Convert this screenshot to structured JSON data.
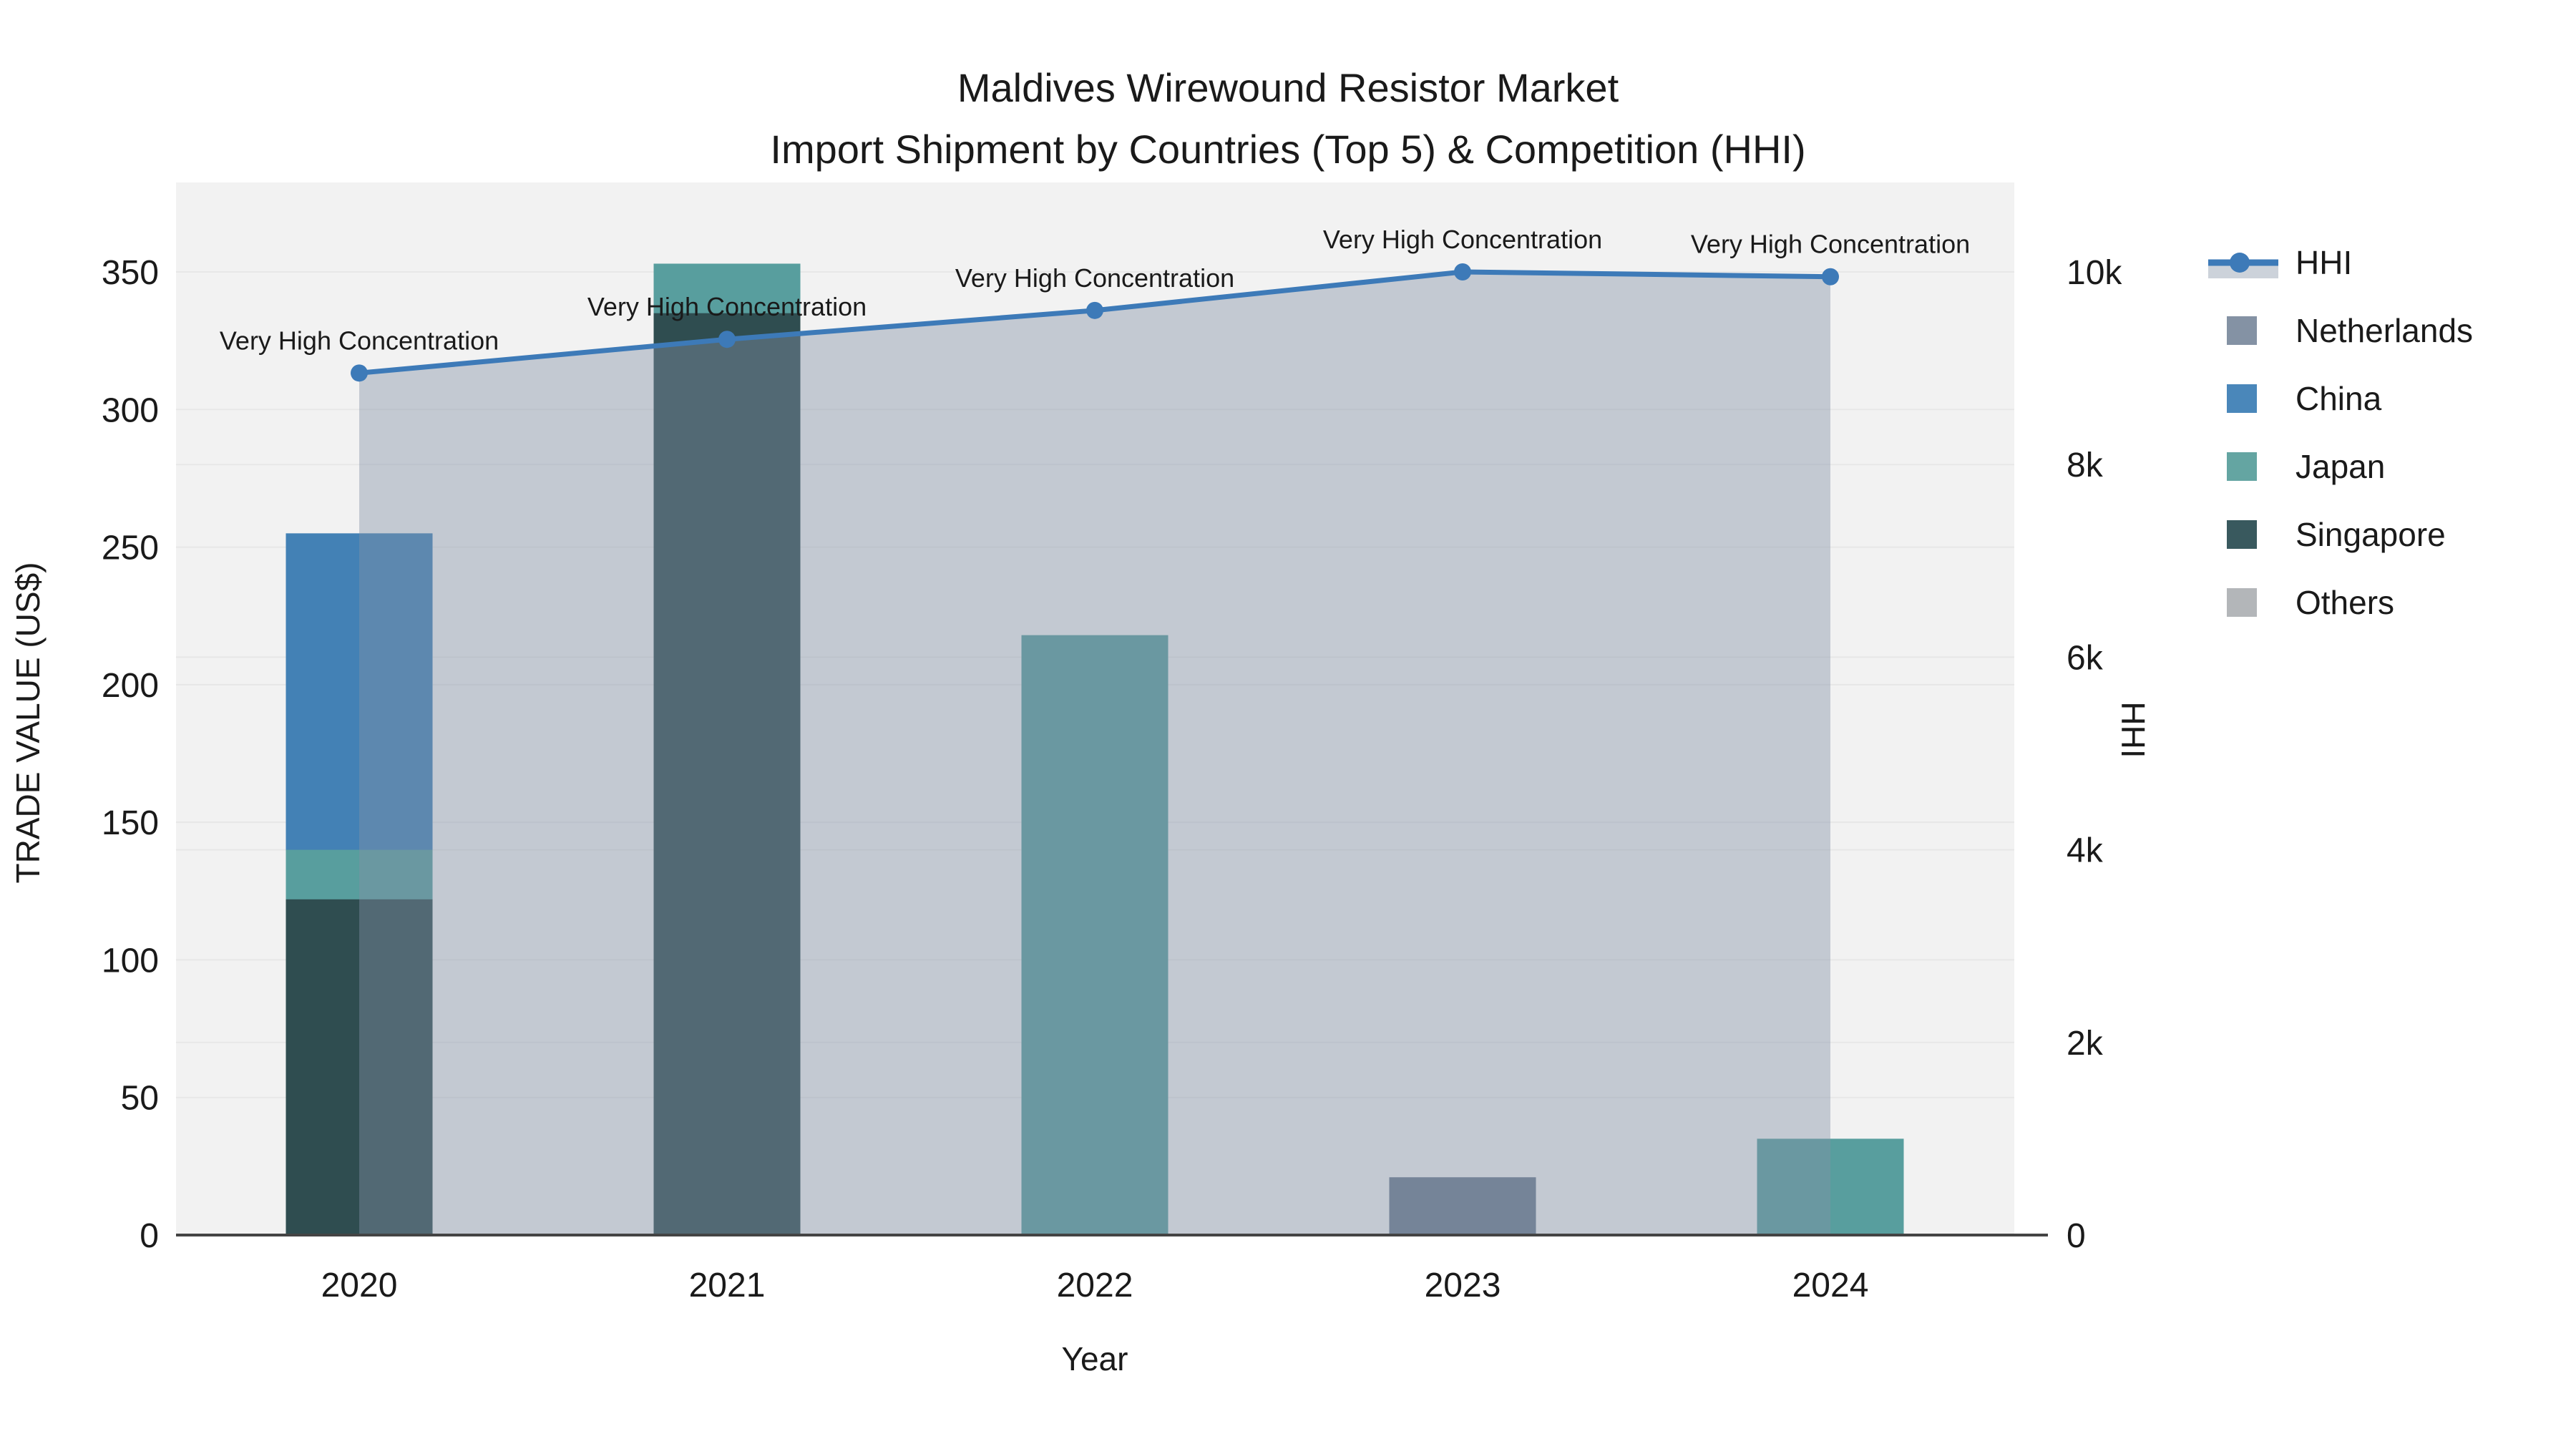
{
  "title": {
    "line1": "Maldives Wirewound Resistor Market",
    "line2": "Import Shipment by Countries (Top 5) & Competition (HHI)"
  },
  "axes": {
    "x": {
      "title": "Year",
      "categories": [
        "2020",
        "2021",
        "2022",
        "2023",
        "2024"
      ]
    },
    "y_left": {
      "title": "TRADE VALUE (US$)",
      "tick_values": [
        0,
        50,
        100,
        150,
        200,
        250,
        300,
        350
      ],
      "tick_labels": [
        "0",
        "50",
        "100",
        "150",
        "200",
        "250",
        "300",
        "350"
      ],
      "max": 350
    },
    "y_right": {
      "title": "HHI",
      "tick_values": [
        0,
        2000,
        4000,
        6000,
        8000,
        10000
      ],
      "tick_labels": [
        "0",
        "2k",
        "4k",
        "6k",
        "8k",
        "10k"
      ],
      "max": 10000
    }
  },
  "legend": {
    "items": [
      {
        "label": "HHI",
        "type": "line",
        "color": "#3d7ab8"
      },
      {
        "label": "Netherlands",
        "type": "bar",
        "color": "#8492a4"
      },
      {
        "label": "China",
        "type": "bar",
        "color": "#4a87ba"
      },
      {
        "label": "Japan",
        "type": "bar",
        "color": "#64a5a2"
      },
      {
        "label": "Singapore",
        "type": "bar",
        "color": "#39595e"
      },
      {
        "label": "Others",
        "type": "bar",
        "color": "#b3b6b9"
      }
    ]
  },
  "annotations": {
    "label": "Very High Concentration",
    "per_point": [
      "Very High Concentration",
      "Very High Concentration",
      "Very High Concentration",
      "Very High Concentration",
      "Very High Concentration"
    ]
  },
  "colors": {
    "plot_bg": "#f2f2f2",
    "grid": "#e7e7e7",
    "axis_line": "#444444",
    "hhi_line": "#3d7ab8",
    "hhi_area_fill": "rgba(130,145,168,0.42)",
    "legend_band": "#ccd2da",
    "bar_netherlands": "#6b7a8e",
    "bar_china": "#4381b5",
    "bar_japan": "#589e9e",
    "bar_singapore": "#2f4d50",
    "bar_others": "#b3b6b9"
  },
  "chart_data": {
    "type": "bar+line",
    "categories": [
      "2020",
      "2021",
      "2022",
      "2023",
      "2024"
    ],
    "bar_axis": "left",
    "line_axis": "right",
    "ylim_left": [
      0,
      350
    ],
    "ylim_right": [
      0,
      10000
    ],
    "grid": "on",
    "legend_position": "right",
    "bar_mode": "overlay",
    "series": [
      {
        "name": "Netherlands",
        "type": "bar",
        "color_key": "bar_netherlands",
        "values": [
          0,
          0,
          0,
          21,
          0
        ]
      },
      {
        "name": "China",
        "type": "bar",
        "color_key": "bar_china",
        "values": [
          255,
          0,
          0,
          0,
          0
        ]
      },
      {
        "name": "Japan",
        "type": "bar",
        "color_key": "bar_japan",
        "values": [
          140,
          353,
          218,
          0,
          35
        ]
      },
      {
        "name": "Singapore",
        "type": "bar",
        "color_key": "bar_singapore",
        "values": [
          122,
          335,
          0,
          0,
          0
        ]
      },
      {
        "name": "Others",
        "type": "bar",
        "color_key": "bar_others",
        "values": [
          0,
          0,
          0,
          0,
          0
        ]
      },
      {
        "name": "HHI",
        "type": "line",
        "color_key": "hhi_line",
        "values": [
          8950,
          9300,
          9600,
          10000,
          9950
        ]
      }
    ],
    "title": "Maldives Wirewound Resistor Market — Import Shipment by Countries (Top 5) & Competition (HHI)",
    "xlabel": "Year",
    "ylabel_left": "TRADE VALUE (US$)",
    "ylabel_right": "HHI"
  }
}
